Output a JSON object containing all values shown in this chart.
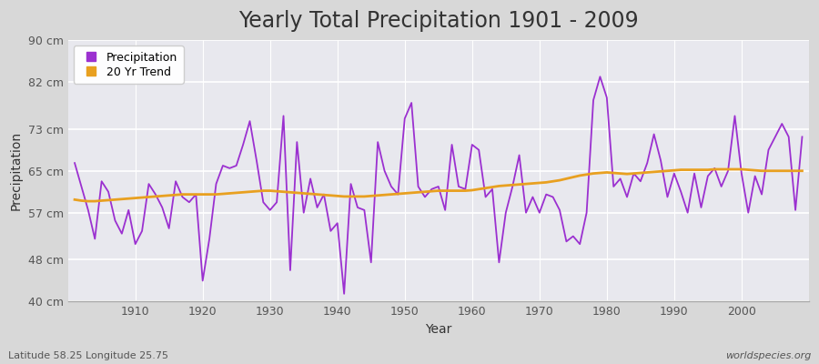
{
  "title": "Yearly Total Precipitation 1901 - 2009",
  "xlabel": "Year",
  "ylabel": "Precipitation",
  "subtitle": "Latitude 58.25 Longitude 25.75",
  "watermark": "worldspecies.org",
  "years": [
    1901,
    1902,
    1903,
    1904,
    1905,
    1906,
    1907,
    1908,
    1909,
    1910,
    1911,
    1912,
    1913,
    1914,
    1915,
    1916,
    1917,
    1918,
    1919,
    1920,
    1921,
    1922,
    1923,
    1924,
    1925,
    1926,
    1927,
    1928,
    1929,
    1930,
    1931,
    1932,
    1933,
    1934,
    1935,
    1936,
    1937,
    1938,
    1939,
    1940,
    1941,
    1942,
    1943,
    1944,
    1945,
    1946,
    1947,
    1948,
    1949,
    1950,
    1951,
    1952,
    1953,
    1954,
    1955,
    1956,
    1957,
    1958,
    1959,
    1960,
    1961,
    1962,
    1963,
    1964,
    1965,
    1966,
    1967,
    1968,
    1969,
    1970,
    1971,
    1972,
    1973,
    1974,
    1975,
    1976,
    1977,
    1978,
    1979,
    1980,
    1981,
    1982,
    1983,
    1984,
    1985,
    1986,
    1987,
    1988,
    1989,
    1990,
    1991,
    1992,
    1993,
    1994,
    1995,
    1996,
    1997,
    1998,
    1999,
    2000,
    2001,
    2002,
    2003,
    2004,
    2005,
    2006,
    2007,
    2008,
    2009
  ],
  "precip": [
    66.5,
    62.0,
    57.5,
    52.0,
    63.0,
    61.0,
    55.5,
    53.0,
    57.5,
    51.0,
    53.5,
    62.5,
    60.5,
    58.0,
    54.0,
    63.0,
    60.0,
    59.0,
    60.5,
    44.0,
    52.0,
    62.5,
    66.0,
    65.5,
    66.0,
    70.0,
    74.5,
    67.0,
    59.0,
    57.5,
    59.0,
    75.5,
    46.0,
    70.5,
    57.0,
    63.5,
    58.0,
    60.5,
    53.5,
    55.0,
    41.5,
    62.5,
    58.0,
    57.5,
    47.5,
    70.5,
    65.0,
    62.0,
    60.5,
    75.0,
    78.0,
    62.0,
    60.0,
    61.5,
    62.0,
    57.5,
    70.0,
    62.0,
    61.5,
    70.0,
    69.0,
    60.0,
    61.5,
    47.5,
    57.0,
    62.0,
    68.0,
    57.0,
    60.0,
    57.0,
    60.5,
    60.0,
    57.5,
    51.5,
    52.5,
    51.0,
    57.0,
    78.5,
    83.0,
    79.0,
    62.0,
    63.5,
    60.0,
    64.5,
    63.0,
    66.5,
    72.0,
    67.0,
    60.0,
    64.5,
    61.0,
    57.0,
    64.5,
    58.0,
    64.0,
    65.5,
    62.0,
    65.0,
    75.5,
    64.5,
    57.0,
    64.0,
    60.5,
    69.0,
    71.5,
    74.0,
    71.5,
    57.5,
    71.5
  ],
  "trend": [
    59.5,
    59.3,
    59.2,
    59.2,
    59.3,
    59.4,
    59.5,
    59.6,
    59.7,
    59.8,
    59.9,
    60.0,
    60.1,
    60.2,
    60.3,
    60.4,
    60.5,
    60.5,
    60.5,
    60.5,
    60.5,
    60.5,
    60.6,
    60.7,
    60.8,
    60.9,
    61.0,
    61.1,
    61.2,
    61.2,
    61.1,
    61.0,
    60.9,
    60.8,
    60.7,
    60.6,
    60.5,
    60.4,
    60.3,
    60.2,
    60.1,
    60.1,
    60.1,
    60.1,
    60.2,
    60.3,
    60.4,
    60.5,
    60.6,
    60.7,
    60.8,
    60.9,
    61.0,
    61.1,
    61.2,
    61.2,
    61.2,
    61.2,
    61.2,
    61.3,
    61.5,
    61.7,
    61.9,
    62.1,
    62.2,
    62.3,
    62.4,
    62.5,
    62.6,
    62.7,
    62.8,
    63.0,
    63.2,
    63.5,
    63.8,
    64.1,
    64.3,
    64.5,
    64.6,
    64.7,
    64.6,
    64.5,
    64.4,
    64.5,
    64.6,
    64.7,
    64.8,
    64.9,
    65.0,
    65.1,
    65.2,
    65.2,
    65.2,
    65.2,
    65.2,
    65.3,
    65.3,
    65.3,
    65.3,
    65.3,
    65.2,
    65.1,
    65.0,
    65.0,
    65.0,
    65.0,
    65.0,
    65.0,
    65.0
  ],
  "precip_color": "#9b30d0",
  "trend_color": "#e8a020",
  "fig_bg_color": "#d8d8d8",
  "plot_bg_color": "#e8e8ee",
  "grid_color": "#ffffff",
  "spine_color": "#aaaaaa",
  "text_color": "#333333",
  "tick_color": "#555555",
  "ylim": [
    40,
    90
  ],
  "yticks": [
    40,
    48,
    57,
    65,
    73,
    82,
    90
  ],
  "ytick_labels": [
    "40 cm",
    "48 cm",
    "57 cm",
    "65 cm",
    "73 cm",
    "82 cm",
    "90 cm"
  ],
  "xticks": [
    1910,
    1920,
    1930,
    1940,
    1950,
    1960,
    1970,
    1980,
    1990,
    2000
  ],
  "xlim": [
    1900,
    2010
  ],
  "title_fontsize": 17,
  "axis_label_fontsize": 10,
  "tick_fontsize": 9,
  "legend_fontsize": 9,
  "subtitle_fontsize": 8,
  "watermark_fontsize": 8
}
